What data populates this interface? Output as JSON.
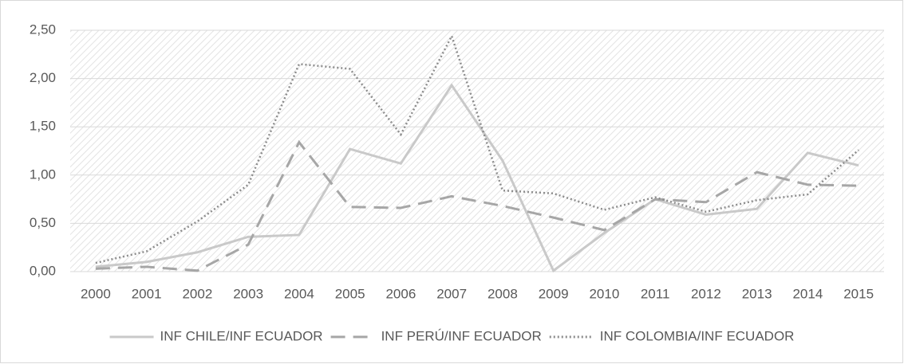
{
  "chart_data": {
    "type": "line",
    "categories": [
      "2000",
      "2001",
      "2002",
      "2003",
      "2004",
      "2005",
      "2006",
      "2007",
      "2008",
      "2009",
      "2010",
      "2011",
      "2012",
      "2013",
      "2014",
      "2015"
    ],
    "series": [
      {
        "name": "INF CHILE/INF ECUADOR",
        "color": "#c9c9c9",
        "dash": "solid",
        "values": [
          0.05,
          0.1,
          0.2,
          0.36,
          0.38,
          1.27,
          1.12,
          1.93,
          1.15,
          0.01,
          0.4,
          0.75,
          0.59,
          0.65,
          1.23,
          1.1
        ]
      },
      {
        "name": "INF PERÚ/INF ECUADOR",
        "color": "#a6a6a6",
        "dash": "dashed",
        "values": [
          0.03,
          0.05,
          0.01,
          0.28,
          1.34,
          0.67,
          0.66,
          0.78,
          0.68,
          0.56,
          0.43,
          0.75,
          0.72,
          1.03,
          0.9,
          0.89
        ]
      },
      {
        "name": "INF COLOMBIA/INF ECUADOR",
        "color": "#8c8c8c",
        "dash": "dotted",
        "values": [
          0.09,
          0.21,
          0.52,
          0.9,
          2.15,
          2.1,
          1.42,
          2.44,
          0.84,
          0.81,
          0.64,
          0.77,
          0.62,
          0.74,
          0.8,
          1.26
        ]
      }
    ],
    "ylim": [
      0,
      2.5
    ],
    "yticks": [
      {
        "value": 0,
        "label": "0,00"
      },
      {
        "value": 0.5,
        "label": "0,50"
      },
      {
        "value": 1,
        "label": "1,00"
      },
      {
        "value": 1.5,
        "label": "1,50"
      },
      {
        "value": 2,
        "label": "2,00"
      },
      {
        "value": 2.5,
        "label": "2,50"
      }
    ],
    "grid": true,
    "legend": "bottom"
  }
}
